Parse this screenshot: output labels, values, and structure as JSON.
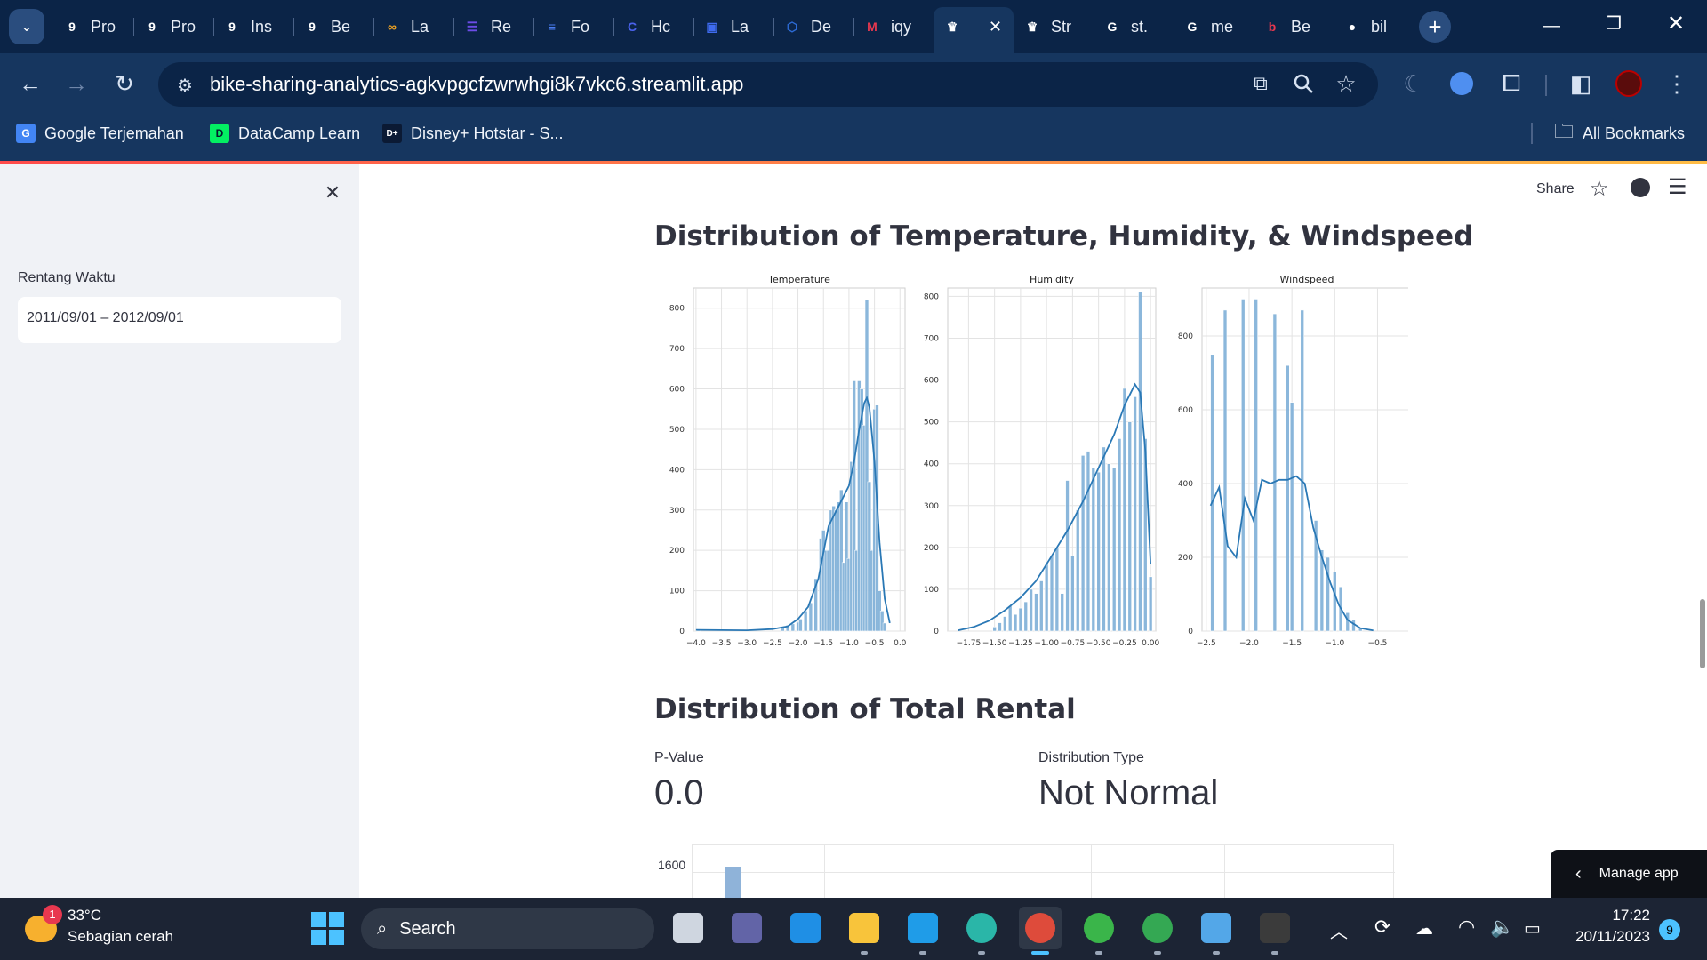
{
  "browser": {
    "tabs": [
      {
        "label": "Pro",
        "icon": "g-logo-icon",
        "color": "#ffffff"
      },
      {
        "label": "Pro",
        "icon": "g-logo-icon",
        "color": "#ffffff"
      },
      {
        "label": "Ins",
        "icon": "g-logo-icon",
        "color": "#ffffff"
      },
      {
        "label": "Be",
        "icon": "g-logo-icon",
        "color": "#ffffff"
      },
      {
        "label": "La",
        "icon": "infinity-icon",
        "color": "#f5a623"
      },
      {
        "label": "Re",
        "icon": "list-icon",
        "color": "#6c4ce6"
      },
      {
        "label": "Fo",
        "icon": "doc-icon",
        "color": "#4a7cf0"
      },
      {
        "label": "Hc",
        "icon": "c-logo-icon",
        "color": "#4a62ec"
      },
      {
        "label": "La",
        "icon": "app-icon",
        "color": "#3f6bef"
      },
      {
        "label": "De",
        "icon": "hex-icon",
        "color": "#2d6bd6"
      },
      {
        "label": "iqy",
        "icon": "mail-icon",
        "color": "#e8384f"
      },
      {
        "label": "",
        "icon": "streamlit-crown-icon",
        "color": "#ffffff"
      },
      {
        "label": "Str",
        "icon": "streamlit-crown-icon",
        "color": "#ffffff"
      },
      {
        "label": "st.",
        "icon": "google-icon",
        "color": "#ffffff"
      },
      {
        "label": "me",
        "icon": "google-icon",
        "color": "#ffffff"
      },
      {
        "label": "Be",
        "icon": "b-logo-icon",
        "color": "#e8384f"
      },
      {
        "label": "bil",
        "icon": "github-icon",
        "color": "#ffffff"
      }
    ],
    "url": "bike-sharing-analytics-agkvpgcfzwrwhgi8k7vkc6.streamlit.app",
    "bookmarks": [
      {
        "label": "Google Terjemahan"
      },
      {
        "label": "DataCamp Learn"
      },
      {
        "label": "Disney+ Hotstar - S..."
      }
    ],
    "all_bookmarks": "All Bookmarks"
  },
  "sidebar": {
    "label": "Rentang Waktu",
    "date_range": "2011/09/01 – 2012/09/01"
  },
  "header": {
    "share": "Share"
  },
  "section1": {
    "title": "Distribution of Temperature, Humidity, & Windspeed"
  },
  "section2": {
    "title": "Distribution of Total Rental",
    "metrics": [
      {
        "label": "P-Value",
        "value": "0.0"
      },
      {
        "label": "Distribution Type",
        "value": "Not Normal"
      }
    ],
    "partial_chart_tick": "1600"
  },
  "manage_app": "Manage app",
  "taskbar": {
    "weather_temp": "33°C",
    "weather_desc": "Sebagian cerah",
    "weather_badge": "1",
    "search": "Search",
    "time": "17:22",
    "date": "20/11/2023",
    "notif_count": "9"
  },
  "chart_data": [
    {
      "type": "bar",
      "title": "Temperature",
      "xlim": [
        -4.05,
        0.1
      ],
      "ylim": [
        0,
        850
      ],
      "xticks": [
        "−4.0",
        "−3.5",
        "−3.0",
        "−2.5",
        "−2.0",
        "−1.5",
        "−1.0",
        "−0.5",
        "0.0"
      ],
      "xtick_values": [
        -4.0,
        -3.5,
        -3.0,
        -2.5,
        -2.0,
        -1.5,
        -1.0,
        -0.5,
        0.0
      ],
      "yticks": [
        0,
        100,
        200,
        300,
        400,
        500,
        600,
        700,
        800
      ],
      "bars": [
        [
          -3.95,
          5
        ],
        [
          -2.3,
          8
        ],
        [
          -2.2,
          15
        ],
        [
          -2.1,
          18
        ],
        [
          -2.0,
          22
        ],
        [
          -1.95,
          30
        ],
        [
          -1.85,
          50
        ],
        [
          -1.75,
          70
        ],
        [
          -1.65,
          130
        ],
        [
          -1.55,
          230
        ],
        [
          -1.5,
          250
        ],
        [
          -1.45,
          200
        ],
        [
          -1.4,
          200
        ],
        [
          -1.35,
          300
        ],
        [
          -1.3,
          310
        ],
        [
          -1.25,
          300
        ],
        [
          -1.2,
          320
        ],
        [
          -1.15,
          350
        ],
        [
          -1.1,
          170
        ],
        [
          -1.05,
          320
        ],
        [
          -1.0,
          180
        ],
        [
          -0.95,
          420
        ],
        [
          -0.9,
          620
        ],
        [
          -0.85,
          200
        ],
        [
          -0.8,
          620
        ],
        [
          -0.75,
          600
        ],
        [
          -0.7,
          510
        ],
        [
          -0.65,
          820
        ],
        [
          -0.6,
          370
        ],
        [
          -0.55,
          200
        ],
        [
          -0.5,
          550
        ],
        [
          -0.45,
          560
        ],
        [
          -0.4,
          100
        ],
        [
          -0.35,
          50
        ],
        [
          -0.3,
          20
        ]
      ],
      "kde": [
        [
          -4.0,
          3
        ],
        [
          -3.0,
          2
        ],
        [
          -2.5,
          5
        ],
        [
          -2.2,
          12
        ],
        [
          -2.0,
          30
        ],
        [
          -1.8,
          60
        ],
        [
          -1.6,
          130
        ],
        [
          -1.4,
          260
        ],
        [
          -1.2,
          310
        ],
        [
          -1.0,
          360
        ],
        [
          -0.9,
          420
        ],
        [
          -0.8,
          500
        ],
        [
          -0.7,
          565
        ],
        [
          -0.65,
          578
        ],
        [
          -0.6,
          555
        ],
        [
          -0.5,
          420
        ],
        [
          -0.4,
          220
        ],
        [
          -0.3,
          80
        ],
        [
          -0.2,
          20
        ]
      ]
    },
    {
      "type": "bar",
      "title": "Humidity",
      "xlim": [
        -1.95,
        0.05
      ],
      "ylim": [
        0,
        820
      ],
      "xticks": [
        "−1.75",
        "−1.50",
        "−1.25",
        "−1.00",
        "−0.75",
        "−0.50",
        "−0.25",
        "0.00"
      ],
      "xtick_values": [
        -1.75,
        -1.5,
        -1.25,
        -1.0,
        -0.75,
        -0.5,
        -0.25,
        0.0
      ],
      "yticks": [
        0,
        100,
        200,
        300,
        400,
        500,
        600,
        700,
        800
      ],
      "bars": [
        [
          -1.5,
          10
        ],
        [
          -1.45,
          20
        ],
        [
          -1.4,
          35
        ],
        [
          -1.35,
          60
        ],
        [
          -1.3,
          40
        ],
        [
          -1.25,
          55
        ],
        [
          -1.2,
          70
        ],
        [
          -1.15,
          100
        ],
        [
          -1.1,
          90
        ],
        [
          -1.05,
          120
        ],
        [
          -1.0,
          160
        ],
        [
          -0.95,
          180
        ],
        [
          -0.9,
          200
        ],
        [
          -0.85,
          90
        ],
        [
          -0.8,
          360
        ],
        [
          -0.75,
          180
        ],
        [
          -0.7,
          290
        ],
        [
          -0.65,
          420
        ],
        [
          -0.6,
          430
        ],
        [
          -0.55,
          390
        ],
        [
          -0.5,
          380
        ],
        [
          -0.45,
          440
        ],
        [
          -0.4,
          400
        ],
        [
          -0.35,
          390
        ],
        [
          -0.3,
          460
        ],
        [
          -0.25,
          580
        ],
        [
          -0.2,
          500
        ],
        [
          -0.15,
          560
        ],
        [
          -0.1,
          810
        ],
        [
          -0.05,
          460
        ],
        [
          0.0,
          130
        ]
      ],
      "kde": [
        [
          -1.85,
          2
        ],
        [
          -1.7,
          10
        ],
        [
          -1.55,
          25
        ],
        [
          -1.4,
          50
        ],
        [
          -1.25,
          80
        ],
        [
          -1.1,
          120
        ],
        [
          -0.95,
          180
        ],
        [
          -0.8,
          240
        ],
        [
          -0.65,
          310
        ],
        [
          -0.5,
          390
        ],
        [
          -0.35,
          470
        ],
        [
          -0.25,
          540
        ],
        [
          -0.15,
          590
        ],
        [
          -0.1,
          570
        ],
        [
          -0.05,
          430
        ],
        [
          0.0,
          160
        ]
      ]
    },
    {
      "type": "bar",
      "title": "Windspeed",
      "xlim": [
        -2.55,
        -0.1
      ],
      "ylim": [
        0,
        930
      ],
      "xticks": [
        "−2.5",
        "−2.0",
        "−1.5",
        "−1.0",
        "−0.5"
      ],
      "xtick_values": [
        -2.5,
        -2.0,
        -1.5,
        -1.0,
        -0.5
      ],
      "yticks": [
        0,
        200,
        400,
        600,
        800
      ],
      "bars": [
        [
          -2.43,
          750
        ],
        [
          -2.28,
          870
        ],
        [
          -2.07,
          900
        ],
        [
          -1.92,
          900
        ],
        [
          -1.7,
          860
        ],
        [
          -1.55,
          720
        ],
        [
          -1.5,
          620
        ],
        [
          -1.38,
          870
        ],
        [
          -1.22,
          300
        ],
        [
          -1.15,
          220
        ],
        [
          -1.08,
          200
        ],
        [
          -1.0,
          160
        ],
        [
          -0.93,
          120
        ],
        [
          -0.85,
          50
        ],
        [
          -0.78,
          30
        ],
        [
          -0.7,
          10
        ]
      ],
      "kde": [
        [
          -2.45,
          340
        ],
        [
          -2.35,
          390
        ],
        [
          -2.25,
          230
        ],
        [
          -2.15,
          200
        ],
        [
          -2.05,
          360
        ],
        [
          -1.95,
          300
        ],
        [
          -1.85,
          410
        ],
        [
          -1.75,
          400
        ],
        [
          -1.65,
          410
        ],
        [
          -1.55,
          410
        ],
        [
          -1.45,
          420
        ],
        [
          -1.35,
          400
        ],
        [
          -1.25,
          280
        ],
        [
          -1.15,
          200
        ],
        [
          -1.05,
          130
        ],
        [
          -0.95,
          70
        ],
        [
          -0.85,
          30
        ],
        [
          -0.7,
          8
        ],
        [
          -0.55,
          2
        ]
      ]
    }
  ]
}
